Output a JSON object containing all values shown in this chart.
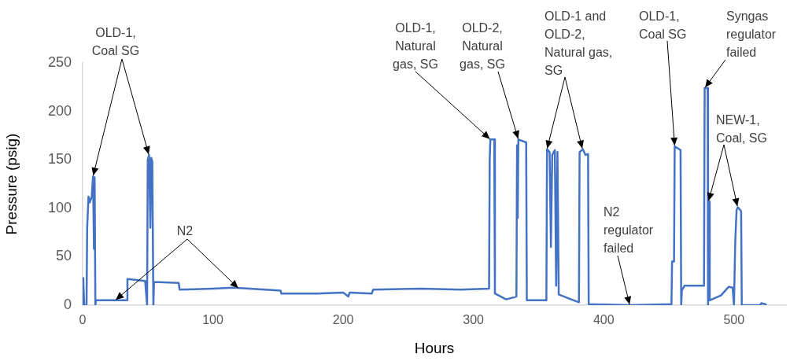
{
  "chart_data": {
    "type": "line",
    "xlabel": "Hours",
    "ylabel": "Pressure (psig)",
    "x": [
      0,
      0.5,
      1.2,
      3,
      3.5,
      4.5,
      5.5,
      7,
      8,
      8.7,
      9.2,
      9.8,
      10.3,
      34,
      34.4,
      48,
      49.5,
      50,
      51,
      52,
      52.6,
      53.5,
      54.3,
      54.8,
      73.7,
      74.5,
      100,
      116,
      152,
      152.5,
      180,
      200,
      204,
      205,
      222,
      223,
      260,
      290,
      312,
      312.5,
      313,
      316,
      316.5,
      325,
      331,
      333,
      333.5,
      334,
      334.5,
      340.5,
      341,
      356,
      356.5,
      358.5,
      359.5,
      360.5,
      362.5,
      363.5,
      364.5,
      365.5,
      375,
      381,
      381.5,
      384,
      386,
      388,
      388.5,
      420,
      452,
      452.5,
      454,
      454.5,
      459,
      459.5,
      460,
      462,
      477,
      477.5,
      479.8,
      480.1,
      480.4,
      481,
      481.4,
      490,
      496,
      499,
      500,
      501,
      502,
      503,
      505.5,
      506,
      520,
      521,
      524,
      525
    ],
    "series": [
      {
        "color": "#4472c4",
        "values": [
          0,
          28,
          0,
          0,
          80,
          112,
          106,
          112,
          133,
          58,
          132,
          0,
          5,
          5,
          27,
          25,
          0,
          150,
          155,
          80,
          152,
          148,
          0,
          24,
          23,
          16,
          17,
          18,
          15,
          12,
          12,
          13,
          9,
          13,
          12,
          16,
          17,
          16,
          17,
          150,
          171,
          171,
          12,
          6,
          8,
          9,
          165,
          90,
          171,
          168,
          5,
          5,
          161,
          158,
          60,
          155,
          160,
          20,
          158,
          11,
          6,
          3,
          158,
          161,
          155,
          156,
          1,
          0,
          1,
          45,
          45,
          164,
          160,
          0,
          15,
          20,
          20,
          224,
          224,
          0,
          107,
          107,
          5,
          10,
          19,
          18,
          0,
          66,
          98,
          101,
          97,
          0,
          0,
          2,
          1,
          0
        ]
      }
    ],
    "xlim": [
      0,
      540
    ],
    "xticks": [
      0,
      100,
      200,
      300,
      400,
      500
    ],
    "ylim": [
      0,
      250
    ],
    "yticks": [
      0,
      50,
      100,
      150,
      200,
      250
    ],
    "grid": false,
    "legend": false,
    "marker": "none",
    "line_style": "solid",
    "annotations": [
      {
        "text": "OLD-1,\nCoal SG",
        "x": 8,
        "y": 133
      },
      {
        "text": "N2",
        "x": 25,
        "y": 5
      },
      {
        "text": "OLD-1,\nNatural\ngas, SG",
        "x": 313,
        "y": 171
      },
      {
        "text": "OLD-2,\nNatural\ngas, SG",
        "x": 334.5,
        "y": 171
      },
      {
        "text": "OLD-1 and\nOLD-2,\nNatural gas,\nSG",
        "x": 356.5,
        "y": 161
      },
      {
        "text": "N2\nregulator\nfailed",
        "x": 420,
        "y": 0
      },
      {
        "text": "OLD-1,\nCoal SG",
        "x": 454.5,
        "y": 164
      },
      {
        "text": "Syngas\nregulator\nfailed",
        "x": 477.5,
        "y": 224
      },
      {
        "text": "NEW-1,\nCoal, SG",
        "x": 480.4,
        "y": 107
      }
    ]
  }
}
